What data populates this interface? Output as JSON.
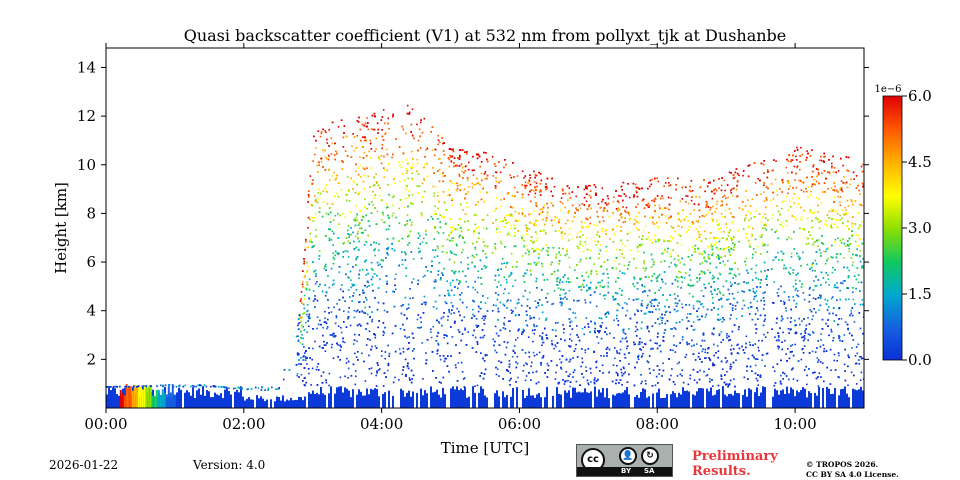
{
  "chart_data": {
    "type": "heatmap",
    "title": "Quasi backscatter coefficient (V1) at 532 nm from pollyxt_tjk at Dushanbe",
    "xlabel": "Time [UTC]",
    "ylabel": "Height [km]",
    "xlim_hours": [
      0,
      11
    ],
    "ylim_km": [
      0,
      14.8
    ],
    "x_ticks": [
      0,
      2,
      4,
      6,
      8,
      10
    ],
    "x_tick_labels": [
      "00:00",
      "02:00",
      "04:00",
      "06:00",
      "08:00",
      "10:00"
    ],
    "y_ticks": [
      2,
      4,
      6,
      8,
      10,
      12,
      14
    ],
    "y_tick_labels": [
      "2",
      "4",
      "6",
      "8",
      "10",
      "12",
      "14"
    ],
    "colorbar": {
      "multiplier": "1e−6",
      "range": [
        0,
        6
      ],
      "ticks": [
        0,
        1.5,
        3,
        4.5,
        6
      ],
      "tick_labels": [
        "0.0",
        "1.5",
        "3.0",
        "4.5",
        "6.0"
      ],
      "colormap": [
        "#0b2fd6",
        "#1560e0",
        "#00aacc",
        "#10c860",
        "#8fe000",
        "#ffff00",
        "#ffb000",
        "#ff5a00",
        "#e00000"
      ]
    },
    "cloud_top_km": [
      [
        0.0,
        0.9
      ],
      [
        0.5,
        0.95
      ],
      [
        1.0,
        1.0
      ],
      [
        1.5,
        1.0
      ],
      [
        2.0,
        0.7
      ],
      [
        2.5,
        0.8
      ],
      [
        2.8,
        4.0
      ],
      [
        3.0,
        11.5
      ],
      [
        3.5,
        12.0
      ],
      [
        4.0,
        12.3
      ],
      [
        4.5,
        12.6
      ],
      [
        5.0,
        10.8
      ],
      [
        5.5,
        10.6
      ],
      [
        6.0,
        10.0
      ],
      [
        6.5,
        9.5
      ],
      [
        7.0,
        9.2
      ],
      [
        7.5,
        9.3
      ],
      [
        8.0,
        9.6
      ],
      [
        8.5,
        9.5
      ],
      [
        9.0,
        9.7
      ],
      [
        9.5,
        10.3
      ],
      [
        10.0,
        10.8
      ],
      [
        10.5,
        10.5
      ],
      [
        11.0,
        10.2
      ]
    ],
    "low_layer_km": 0.9,
    "data_gaps_hours": [
      4.12,
      4.22,
      4.48,
      4.68,
      5.28,
      5.55,
      5.58,
      6.0,
      6.43,
      7.05,
      7.32,
      7.62,
      9.2,
      9.62
    ],
    "aerosol_highlight": {
      "hours": [
        0.2,
        1.0
      ],
      "height_km": [
        0,
        1.0
      ],
      "peak_value": 6.0
    }
  },
  "footer": {
    "date": "2026-01-22",
    "version": "Version: 4.0",
    "license_badge": {
      "main": "cc",
      "by": "BY",
      "sa": "SA"
    },
    "preliminary_line1": "Preliminary",
    "preliminary_line2": "Results.",
    "copyright_line1": "© TROPOS 2026.",
    "copyright_line2": "CC BY SA 4.0 License."
  }
}
